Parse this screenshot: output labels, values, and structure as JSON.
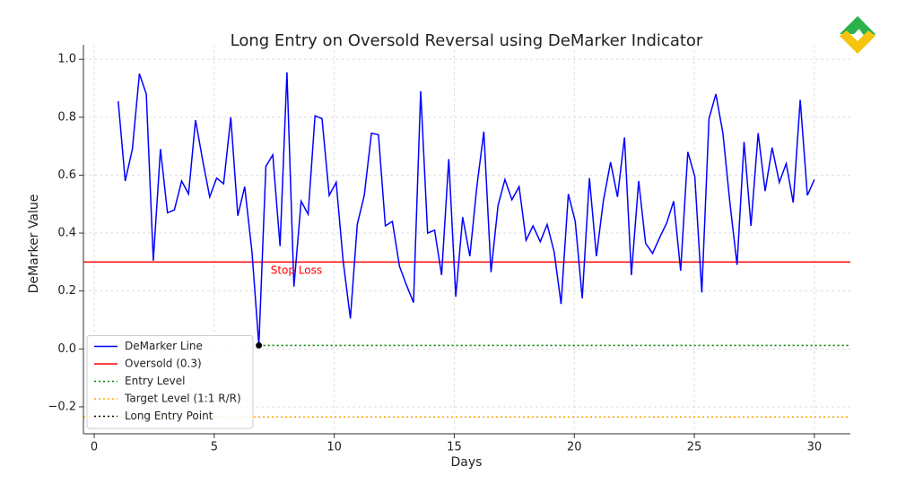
{
  "chart_data": {
    "type": "line",
    "title": "Long Entry on Oversold Reversal using DeMarker Indicator",
    "xlabel": "Days",
    "ylabel": "DeMarker Value",
    "x": [
      1.0,
      1.29,
      1.59,
      1.88,
      2.17,
      2.46,
      2.76,
      3.05,
      3.34,
      3.64,
      3.93,
      4.22,
      4.52,
      4.81,
      5.1,
      5.39,
      5.69,
      5.98,
      6.27,
      6.57,
      6.86,
      7.15,
      7.44,
      7.74,
      8.03,
      8.32,
      8.62,
      8.91,
      9.2,
      9.49,
      9.79,
      10.08,
      10.37,
      10.67,
      10.96,
      11.25,
      11.55,
      11.84,
      12.13,
      12.42,
      12.72,
      13.01,
      13.3,
      13.6,
      13.89,
      14.18,
      14.47,
      14.77,
      15.06,
      15.35,
      15.65,
      15.94,
      16.23,
      16.53,
      16.82,
      17.11,
      17.4,
      17.7,
      17.99,
      18.28,
      18.58,
      18.87,
      19.16,
      19.45,
      19.75,
      20.04,
      20.33,
      20.63,
      20.92,
      21.21,
      21.51,
      21.8,
      22.09,
      22.38,
      22.68,
      22.97,
      23.26,
      23.56,
      23.85,
      24.14,
      24.43,
      24.73,
      25.02,
      25.31,
      25.61,
      25.9,
      26.19,
      26.48,
      26.78,
      27.07,
      27.36,
      27.66,
      27.95,
      28.24,
      28.54,
      28.83,
      29.12,
      29.41,
      29.71,
      30.0
    ],
    "series": [
      {
        "name": "DeMarker Line",
        "color": "#0000ff",
        "values": [
          0.855,
          0.58,
          0.69,
          0.95,
          0.88,
          0.305,
          0.69,
          0.47,
          0.48,
          0.58,
          0.535,
          0.79,
          0.65,
          0.525,
          0.59,
          0.57,
          0.8,
          0.46,
          0.56,
          0.335,
          0.012,
          0.63,
          0.67,
          0.355,
          0.955,
          0.215,
          0.51,
          0.465,
          0.805,
          0.795,
          0.53,
          0.575,
          0.305,
          0.105,
          0.43,
          0.53,
          0.745,
          0.74,
          0.425,
          0.44,
          0.285,
          0.22,
          0.16,
          0.89,
          0.4,
          0.41,
          0.255,
          0.655,
          0.18,
          0.455,
          0.32,
          0.56,
          0.75,
          0.265,
          0.495,
          0.585,
          0.515,
          0.56,
          0.375,
          0.425,
          0.37,
          0.43,
          0.335,
          0.155,
          0.535,
          0.44,
          0.175,
          0.59,
          0.32,
          0.51,
          0.645,
          0.525,
          0.73,
          0.255,
          0.58,
          0.365,
          0.33,
          0.385,
          0.435,
          0.51,
          0.27,
          0.68,
          0.595,
          0.195,
          0.795,
          0.88,
          0.745,
          0.505,
          0.29,
          0.715,
          0.425,
          0.745,
          0.545,
          0.695,
          0.575,
          0.64,
          0.505,
          0.86,
          0.53,
          0.585
        ]
      }
    ],
    "reference_lines": [
      {
        "name": "Oversold (0.3)",
        "value": 0.3,
        "color": "#ff0000",
        "style": "solid"
      },
      {
        "name": "Entry Level",
        "value": 0.012,
        "color": "#008000",
        "style": "dotted",
        "x_start": 6.86
      },
      {
        "name": "Target Level (1:1 R/R)",
        "value": -0.235,
        "color": "#ffa500",
        "style": "dotted"
      }
    ],
    "entry_point": {
      "name": "Long Entry Point",
      "x": 6.86,
      "y": 0.012,
      "color": "#000000"
    },
    "annotations": [
      {
        "text": "Stop Loss",
        "x": 7.35,
        "y": 0.27,
        "color": "#ff0000"
      }
    ],
    "xlim": [
      -0.45,
      31.5
    ],
    "ylim": [
      -0.293,
      1.05
    ],
    "xticks": [
      0,
      5,
      10,
      15,
      20,
      25,
      30
    ],
    "yticks": [
      {
        "value": -0.2,
        "label": "−0.2"
      },
      {
        "value": 0,
        "label": "0.0"
      },
      0.2,
      0.4,
      0.6,
      0.8,
      {
        "value": 1,
        "label": "1.0"
      }
    ],
    "grid": true,
    "legend": "lower left"
  }
}
